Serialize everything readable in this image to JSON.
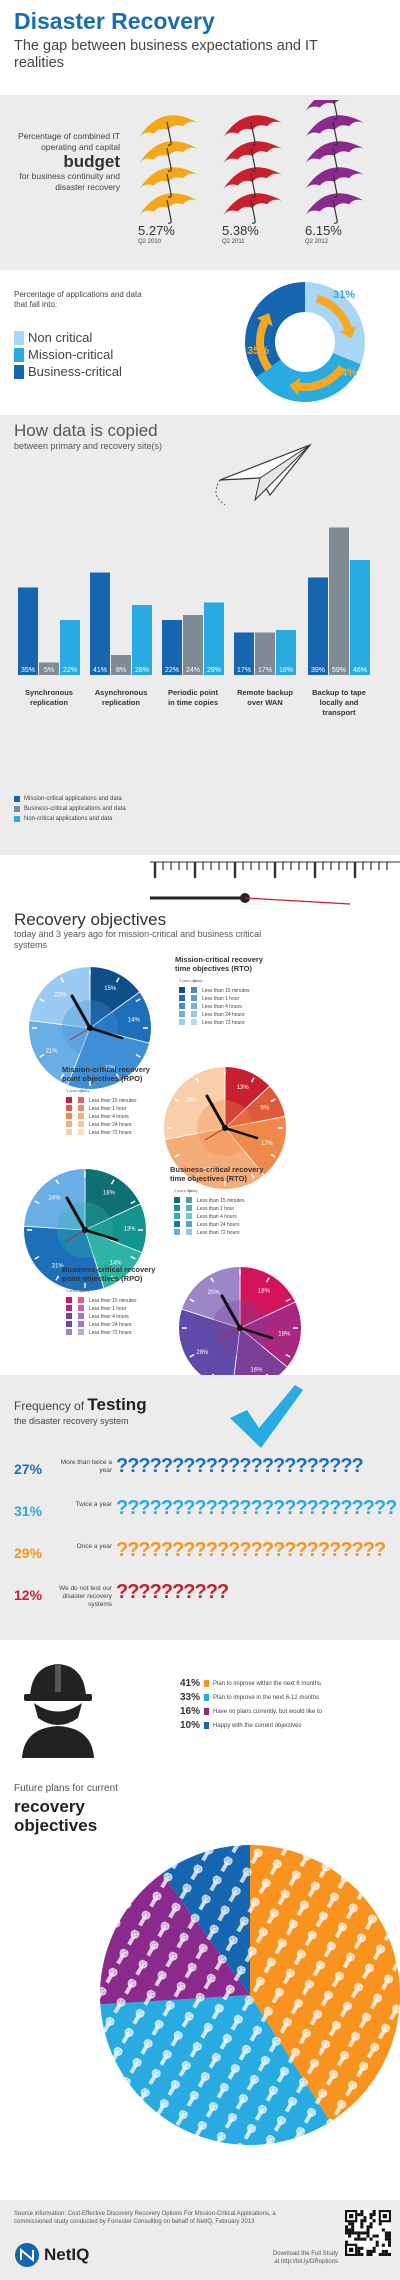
{
  "header": {
    "title": "Disaster Recovery",
    "subtitle": "The gap between business expectations and IT realities"
  },
  "budget": {
    "label_pre": "Percentage of combined IT operating and capital",
    "label_bold": "budget",
    "label_post": "for business continuity and disaster recovery",
    "columns": [
      {
        "value": "5.27%",
        "period": "Q2 2010",
        "umbrellas": 4,
        "color": "#f3a81b"
      },
      {
        "value": "5.38%",
        "period": "Q2 2011",
        "umbrellas": 4,
        "color": "#c8202f"
      },
      {
        "value": "6.15%",
        "period": "Q2 2012",
        "umbrellas": 5,
        "color": "#8a2a8c"
      }
    ]
  },
  "apps": {
    "label": "Percentage of applications and data that fall into:",
    "legend": [
      {
        "label": "Non critical",
        "color": "#a9d7f3"
      },
      {
        "label": "Mission-critical",
        "color": "#29abe2"
      },
      {
        "label": "Business-critical",
        "color": "#1565b0"
      }
    ],
    "chart_data": {
      "type": "pie",
      "labels": [
        "Non critical",
        "Mission-critical",
        "Business-critical"
      ],
      "values": [
        31,
        34,
        35
      ],
      "value_labels": [
        "31%",
        "34%",
        "35%"
      ]
    }
  },
  "copied": {
    "title": "How data is copied",
    "subtitle": "between primary and recovery site(s)",
    "legend": [
      {
        "label": "Mission-critical applications and data",
        "color": "#1565b0"
      },
      {
        "label": "Business-critical applications and data",
        "color": "#7f8a94"
      },
      {
        "label": "Non-critical applications and data",
        "color": "#29abe2"
      }
    ],
    "chart_data": {
      "type": "bar",
      "categories": [
        "Synchronous replication",
        "Asynchronous replication",
        "Periodic point in time copies",
        "Remote backup over WAN",
        "Backup to tape locally and transport"
      ],
      "series": [
        {
          "name": "Mission-critical applications and data",
          "values": [
            35,
            41,
            22,
            17,
            39
          ],
          "labels": [
            "35%",
            "41%",
            "22%",
            "17%",
            "39%"
          ]
        },
        {
          "name": "Business-critical applications and data",
          "values": [
            5,
            8,
            24,
            17,
            59
          ],
          "labels": [
            "5%",
            "8%",
            "24%",
            "17%",
            "59%"
          ]
        },
        {
          "name": "Non-critical applications and data",
          "values": [
            22,
            28,
            29,
            18,
            46
          ],
          "labels": [
            "22%",
            "28%",
            "29%",
            "18%",
            "46%"
          ]
        }
      ]
    }
  },
  "recovery": {
    "title": "Recovery objectives",
    "subtitle": "today and 3 years ago for mission-critical and business critical systems",
    "legend_cols": [
      "3 years ago",
      "Today"
    ],
    "buckets": [
      "Less than 15 minutes",
      "Less than 1 hour",
      "Less than 4 hours",
      "Less than 24 hours",
      "Less than 72 hours"
    ],
    "clocks": [
      {
        "title": "Mission-critical recovery time objectives (RTO)",
        "palette": [
          "#0e4f8a",
          "#1d6fba",
          "#3e8fd6",
          "#6aaee6",
          "#9ccbf2"
        ],
        "values": [
          15,
          14,
          27,
          21,
          23
        ],
        "labels": [
          "15%",
          "14%",
          "27%",
          "21%",
          "23%"
        ]
      },
      {
        "title": "Mission-critical recovery point objectives (RPO)",
        "palette": [
          "#c8202f",
          "#e05a3a",
          "#f08a4b",
          "#f4ad78",
          "#f8cfa8"
        ],
        "values": [
          13,
          9,
          17,
          33,
          28
        ],
        "labels": [
          "13%",
          "9%",
          "17%",
          "33%",
          "28%"
        ]
      },
      {
        "title": "Business-critical recovery time objectives (RTO)",
        "palette": [
          "#0e6f74",
          "#14948f",
          "#2fb3a5",
          "#1d6fba",
          "#6aaee6"
        ],
        "values": [
          18,
          13,
          14,
          31,
          24
        ],
        "labels": [
          "18%",
          "13%",
          "14%",
          "31%",
          "24%"
        ]
      },
      {
        "title": "Business-critical recovery point objectives (RPO)",
        "palette": [
          "#d4145a",
          "#a8287f",
          "#7b3f98",
          "#5e4aa8",
          "#9d86c7"
        ],
        "values": [
          18,
          18,
          16,
          28,
          20
        ],
        "labels": [
          "18%",
          "18%",
          "16%",
          "28%",
          "20%"
        ]
      }
    ]
  },
  "testing": {
    "title_pre": "Frequency of",
    "title_bold": "Testing",
    "subtitle": "the disaster recovery system",
    "rows": [
      {
        "value": "27%",
        "label": "More than twice a year",
        "count": 22,
        "color": "#1d6fba"
      },
      {
        "value": "31%",
        "label": "Twice a year",
        "count": 27,
        "color": "#29abe2"
      },
      {
        "value": "29%",
        "label": "Once a year",
        "count": 24,
        "color": "#f7931e"
      },
      {
        "value": "12%",
        "label": "We do not test our disaster recovery systems",
        "count": 10,
        "color": "#c8202f"
      }
    ]
  },
  "plans": {
    "label": "Future plans for current",
    "label_bold": "recovery objectives",
    "items": [
      {
        "value": "41%",
        "label": "Plan to improve within the next 6 months",
        "color": "#f7931e"
      },
      {
        "value": "33%",
        "label": "Plan to improve in the next 6-12 months",
        "color": "#29abe2"
      },
      {
        "value": "16%",
        "label": "Have no plans currently, but would like to",
        "color": "#8a2a8c"
      },
      {
        "value": "10%",
        "label": "Happy with the current objectives",
        "color": "#1565b0"
      }
    ],
    "chart_data": {
      "type": "pie",
      "labels": [
        "Plan to improve within the next 6 months",
        "Plan to improve in the next 6-12 months",
        "Have no plans currently, but would like to",
        "Happy with the current objectives"
      ],
      "values": [
        41,
        33,
        16,
        10
      ]
    }
  },
  "footer": {
    "source": "Source information: Cost-Effective Discovery Recovery Options For Mission-Critical Applications, a commissioned study conducted by Forrester Consulting on behalf of NetIQ, February 2013",
    "download_line1": "Download the Full Study",
    "download_line2": "at http://bit.ly/DRoptions",
    "logo": "NetIQ"
  }
}
